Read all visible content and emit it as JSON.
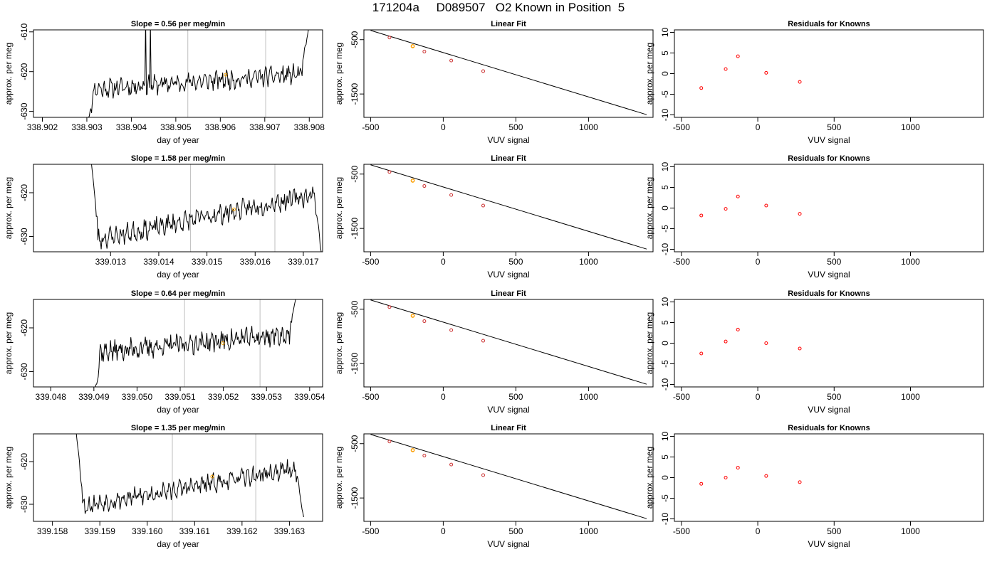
{
  "header": {
    "title": "171204a     D089507   O2 Known in Position  5"
  },
  "colors": {
    "trace": "#000000",
    "marker": "#ffa500",
    "residual": "#ff0000",
    "fit_point": "#cc3333",
    "gridline": "#bebebe"
  },
  "chart_data": [
    {
      "type": "line",
      "panel": "time-series",
      "row": 1,
      "title": "Slope =  0.56  per meg/min",
      "xlabel": "day of year",
      "ylabel": "approx. per meg",
      "xlim": [
        338.9018,
        338.9083
      ],
      "ylim": [
        -631.5,
        -609.5
      ],
      "xticks": [
        "338.902",
        "338.903",
        "338.904",
        "338.905",
        "338.906",
        "338.907",
        "338.908"
      ],
      "xtick_values": [
        338.902,
        338.903,
        338.904,
        338.905,
        338.906,
        338.907,
        338.908
      ],
      "yticks": [
        "-610",
        "-620",
        "-630"
      ],
      "ytick_values": [
        -610,
        -620,
        -630
      ],
      "vlines": [
        338.90527,
        338.90702
      ],
      "series": [
        {
          "x_start": 338.903,
          "x_end": 338.908,
          "baseline": -622.5,
          "slope_per_day": 806,
          "noise": 1.8,
          "seed": 11,
          "start": [
            -633,
            -626,
            338.90335
          ],
          "end": [
            -614,
            -608,
            338.90785
          ]
        }
      ],
      "spikes": [
        [
          338.90432,
          -607
        ],
        [
          338.90442,
          -608
        ]
      ],
      "marker": {
        "x": 338.90612,
        "y": -620.8
      }
    },
    {
      "type": "scatter",
      "panel": "linear-fit",
      "row": 1,
      "title": "Linear Fit",
      "xlabel": "VUV signal",
      "ylabel": "approx. per meg",
      "xlim": [
        -546,
        1444
      ],
      "ylim": [
        -1930,
        -320
      ],
      "xticks": [
        "-500",
        "0",
        "500",
        "1000"
      ],
      "xtick_values": [
        -500,
        0,
        500,
        1000
      ],
      "yticks": [
        "-500",
        "-1500"
      ],
      "ytick_values": [
        -500,
        -1500
      ],
      "points": [
        [
          -370,
          -460
        ],
        [
          -210,
          -620
        ],
        [
          -130,
          -720
        ],
        [
          55,
          -885
        ],
        [
          275,
          -1080
        ]
      ],
      "highlight": [
        -210,
        -620
      ],
      "fit_line": [
        [
          -500,
          -330
        ],
        [
          1400,
          -1880
        ]
      ]
    },
    {
      "type": "scatter",
      "panel": "residuals",
      "row": 1,
      "title": "Residuals for Knowns",
      "xlabel": "VUV signal",
      "ylabel": "approx. per meg",
      "xlim": [
        -546,
        1478
      ],
      "ylim": [
        -10.6,
        10.6
      ],
      "xticks": [
        "-500",
        "0",
        "500",
        "1000"
      ],
      "xtick_values": [
        -500,
        0,
        500,
        1000
      ],
      "yticks": [
        "10",
        "5",
        "0",
        "-5",
        "-10"
      ],
      "ytick_values": [
        10,
        5,
        0,
        -5,
        -10
      ],
      "points": [
        [
          -370,
          -3.5
        ],
        [
          -210,
          1.1
        ],
        [
          -130,
          4.2
        ],
        [
          55,
          0.2
        ],
        [
          275,
          -2.0
        ]
      ]
    },
    {
      "type": "line",
      "panel": "time-series",
      "row": 2,
      "title": "Slope =  1.58  per meg/min",
      "xlabel": "day of year",
      "ylabel": "approx. per meg",
      "xlim": [
        339.0114,
        339.0174
      ],
      "ylim": [
        -633.5,
        -613.5
      ],
      "xticks": [
        "339.013",
        "339.014",
        "339.015",
        "339.016",
        "339.017"
      ],
      "xtick_values": [
        339.013,
        339.014,
        339.015,
        339.016,
        339.017
      ],
      "yticks": [
        "-620",
        "-630"
      ],
      "ytick_values": [
        -620,
        -630
      ],
      "vlines": [
        339.01466,
        339.01641
      ],
      "series": [
        {
          "x_start": 339.0126,
          "x_end": 339.0174,
          "baseline": -625.5,
          "slope_per_day": 2275,
          "noise": 1.7,
          "seed": 23,
          "start": [
            -613,
            -620,
            339.01265
          ],
          "end": [
            -632,
            -636,
            339.01735
          ]
        }
      ],
      "spikes": [],
      "marker": {
        "x": 339.01556,
        "y": -623.8
      }
    },
    {
      "type": "scatter",
      "panel": "linear-fit",
      "row": 2,
      "title": "Linear Fit",
      "xlabel": "VUV signal",
      "ylabel": "approx. per meg",
      "xlim": [
        -546,
        1444
      ],
      "ylim": [
        -1930,
        -320
      ],
      "xticks": [
        "-500",
        "0",
        "500",
        "1000"
      ],
      "xtick_values": [
        -500,
        0,
        500,
        1000
      ],
      "yticks": [
        "-500",
        "-1500"
      ],
      "ytick_values": [
        -500,
        -1500
      ],
      "points": [
        [
          -370,
          -460
        ],
        [
          -210,
          -620
        ],
        [
          -130,
          -720
        ],
        [
          55,
          -885
        ],
        [
          275,
          -1080
        ]
      ],
      "highlight": [
        -210,
        -620
      ],
      "fit_line": [
        [
          -500,
          -330
        ],
        [
          1400,
          -1880
        ]
      ]
    },
    {
      "type": "scatter",
      "panel": "residuals",
      "row": 2,
      "title": "Residuals for Knowns",
      "xlabel": "VUV signal",
      "ylabel": "approx. per meg",
      "xlim": [
        -546,
        1478
      ],
      "ylim": [
        -10.6,
        10.6
      ],
      "xticks": [
        "-500",
        "0",
        "500",
        "1000"
      ],
      "xtick_values": [
        -500,
        0,
        500,
        1000
      ],
      "yticks": [
        "10",
        "5",
        "0",
        "-5",
        "-10"
      ],
      "ytick_values": [
        10,
        5,
        0,
        -5,
        -10
      ],
      "points": [
        [
          -370,
          -1.8
        ],
        [
          -210,
          -0.2
        ],
        [
          -130,
          2.8
        ],
        [
          55,
          0.6
        ],
        [
          275,
          -1.4
        ]
      ]
    },
    {
      "type": "line",
      "panel": "time-series",
      "row": 3,
      "title": "Slope =  0.64  per meg/min",
      "xlabel": "day of year",
      "ylabel": "approx. per meg",
      "xlim": [
        339.0476,
        339.0543
      ],
      "ylim": [
        -633.5,
        -613.5
      ],
      "xticks": [
        "339.048",
        "339.049",
        "339.050",
        "339.051",
        "339.052",
        "339.053",
        "339.054"
      ],
      "xtick_values": [
        339.048,
        339.049,
        339.05,
        339.051,
        339.052,
        339.053,
        339.054
      ],
      "yticks": [
        "-620",
        "-630"
      ],
      "ytick_values": [
        -620,
        -630
      ],
      "vlines": [
        339.0511,
        339.05285
      ],
      "series": [
        {
          "x_start": 339.049,
          "x_end": 339.0537,
          "baseline": -623.5,
          "slope_per_day": 920,
          "noise": 1.8,
          "seed": 37,
          "start": [
            -635,
            -628,
            339.04935
          ],
          "end": [
            -618,
            -612,
            339.05365
          ]
        }
      ],
      "spikes": [],
      "marker": {
        "x": 339.05199,
        "y": -623.5
      }
    },
    {
      "type": "scatter",
      "panel": "linear-fit",
      "row": 3,
      "title": "Linear Fit",
      "xlabel": "VUV signal",
      "ylabel": "approx. per meg",
      "xlim": [
        -546,
        1444
      ],
      "ylim": [
        -1930,
        -320
      ],
      "xticks": [
        "-500",
        "0",
        "500",
        "1000"
      ],
      "xtick_values": [
        -500,
        0,
        500,
        1000
      ],
      "yticks": [
        "-500",
        "-1500"
      ],
      "ytick_values": [
        -500,
        -1500
      ],
      "points": [
        [
          -370,
          -460
        ],
        [
          -210,
          -620
        ],
        [
          -130,
          -720
        ],
        [
          55,
          -885
        ],
        [
          275,
          -1080
        ]
      ],
      "highlight": [
        -210,
        -620
      ],
      "fit_line": [
        [
          -500,
          -330
        ],
        [
          1400,
          -1880
        ]
      ]
    },
    {
      "type": "scatter",
      "panel": "residuals",
      "row": 3,
      "title": "Residuals for Knowns",
      "xlabel": "VUV signal",
      "ylabel": "approx. per meg",
      "xlim": [
        -546,
        1478
      ],
      "ylim": [
        -10.6,
        10.6
      ],
      "xticks": [
        "-500",
        "0",
        "500",
        "1000"
      ],
      "xtick_values": [
        -500,
        0,
        500,
        1000
      ],
      "yticks": [
        "10",
        "5",
        "0",
        "-5",
        "-10"
      ],
      "ytick_values": [
        10,
        5,
        0,
        -5,
        -10
      ],
      "points": [
        [
          -370,
          -2.5
        ],
        [
          -210,
          0.4
        ],
        [
          -130,
          3.3
        ],
        [
          55,
          0.0
        ],
        [
          275,
          -1.3
        ]
      ]
    },
    {
      "type": "line",
      "panel": "time-series",
      "row": 4,
      "title": "Slope =  1.35  per meg/min",
      "xlabel": "day of year",
      "ylabel": "approx. per meg",
      "xlim": [
        339.1576,
        339.1637
      ],
      "ylim": [
        -634,
        -613.5
      ],
      "xticks": [
        "339.158",
        "339.159",
        "339.160",
        "339.161",
        "339.162",
        "339.163"
      ],
      "xtick_values": [
        339.158,
        339.159,
        339.16,
        339.161,
        339.162,
        339.163
      ],
      "yticks": [
        "-620",
        "-630"
      ],
      "ytick_values": [
        -620,
        -630
      ],
      "vlines": [
        339.16053,
        339.16229
      ],
      "series": [
        {
          "x_start": 339.1585,
          "x_end": 339.1633,
          "baseline": -626,
          "slope_per_day": 1944,
          "noise": 1.6,
          "seed": 53,
          "start": [
            -613,
            -622,
            339.1586
          ],
          "end": [
            -627,
            -633,
            339.16325
          ]
        }
      ],
      "spikes": [],
      "marker": {
        "x": 339.16137,
        "y": -623.5
      }
    },
    {
      "type": "scatter",
      "panel": "linear-fit",
      "row": 4,
      "title": "Linear Fit",
      "xlabel": "VUV signal",
      "ylabel": "approx. per meg",
      "xlim": [
        -546,
        1444
      ],
      "ylim": [
        -1930,
        -320
      ],
      "xticks": [
        "-500",
        "0",
        "500",
        "1000"
      ],
      "xtick_values": [
        -500,
        0,
        500,
        1000
      ],
      "yticks": [
        "-500",
        "-1500"
      ],
      "ytick_values": [
        -500,
        -1500
      ],
      "points": [
        [
          -370,
          -460
        ],
        [
          -210,
          -620
        ],
        [
          -130,
          -720
        ],
        [
          55,
          -885
        ],
        [
          275,
          -1080
        ]
      ],
      "highlight": [
        -210,
        -620
      ],
      "fit_line": [
        [
          -500,
          -330
        ],
        [
          1400,
          -1880
        ]
      ]
    },
    {
      "type": "scatter",
      "panel": "residuals",
      "row": 4,
      "title": "Residuals for Knowns",
      "xlabel": "VUV signal",
      "ylabel": "approx. per meg",
      "xlim": [
        -546,
        1478
      ],
      "ylim": [
        -10.6,
        10.6
      ],
      "xticks": [
        "-500",
        "0",
        "500",
        "1000"
      ],
      "xtick_values": [
        -500,
        0,
        500,
        1000
      ],
      "yticks": [
        "10",
        "5",
        "0",
        "-5",
        "-10"
      ],
      "ytick_values": [
        10,
        5,
        0,
        -5,
        -10
      ],
      "points": [
        [
          -370,
          -1.5
        ],
        [
          -210,
          0.0
        ],
        [
          -130,
          2.4
        ],
        [
          55,
          0.4
        ],
        [
          275,
          -1.1
        ]
      ]
    }
  ]
}
